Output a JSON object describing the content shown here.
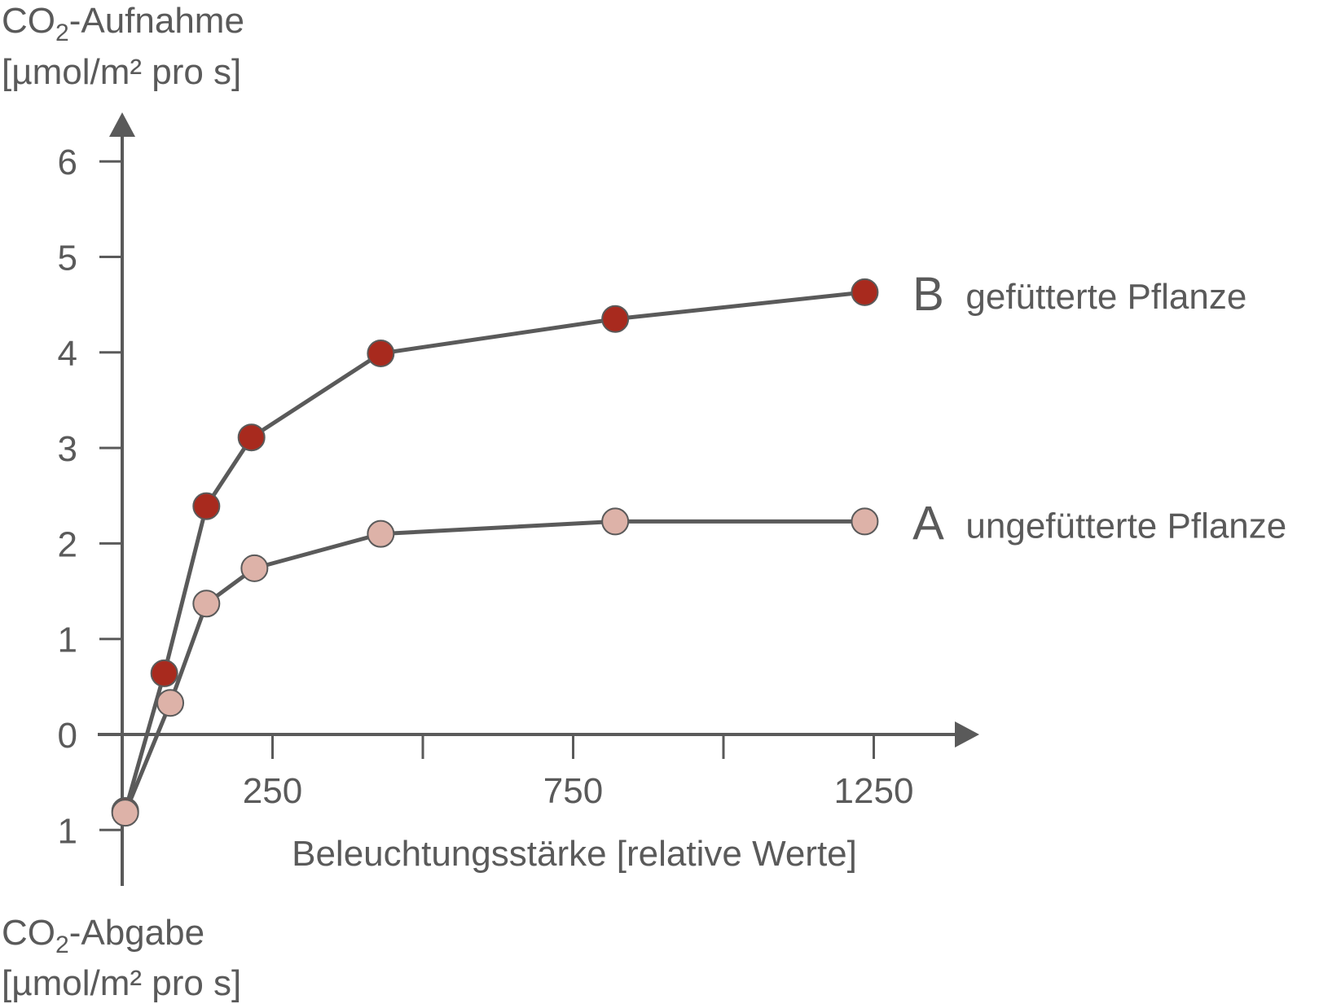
{
  "chart_data": {
    "type": "line",
    "y_axis_top_label": {
      "line1_prefix": "CO",
      "line1_sub": "2",
      "line1_suffix": "-Aufnahme",
      "line2": "[µmol/m² pro s]"
    },
    "y_axis_bottom_label": {
      "line1_prefix": "CO",
      "line1_sub": "2",
      "line1_suffix": "-Abgabe",
      "line2": "[µmol/m² pro s]"
    },
    "xlabel": "Beleuchtungsstärke [relative Werte]",
    "xlim": [
      0,
      1400
    ],
    "ylim": [
      -1.5,
      6.5
    ],
    "x_ticks": [
      250,
      500,
      750,
      1000,
      1250
    ],
    "x_tick_labels": [
      "250",
      "",
      "750",
      "",
      "1250"
    ],
    "y_ticks": [
      -1,
      0,
      1,
      2,
      3,
      4,
      5,
      6
    ],
    "y_tick_labels": [
      "1",
      "0",
      "1",
      "2",
      "3",
      "4",
      "5",
      "6"
    ],
    "grid": false,
    "series": [
      {
        "letter": "B",
        "name": "gefütterte Pflanze",
        "color": "#a82a1e",
        "x": [
          5,
          70,
          140,
          215,
          430,
          820,
          1235
        ],
        "y": [
          -0.8,
          0.64,
          2.39,
          3.11,
          3.99,
          4.35,
          4.63
        ]
      },
      {
        "letter": "A",
        "name": "ungefütterte Pflanze",
        "color": "#ddb2a8",
        "x": [
          5,
          80,
          140,
          220,
          430,
          820,
          1235
        ],
        "y": [
          -0.82,
          0.33,
          1.37,
          1.74,
          2.1,
          2.23,
          2.23
        ]
      }
    ]
  }
}
